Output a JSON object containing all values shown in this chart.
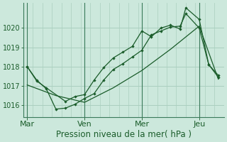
{
  "background_color": "#cce8dc",
  "grid_color": "#aacfbf",
  "line_color": "#1a5c2a",
  "vline_color": "#3a7a5a",
  "xlabel": "Pression niveau de la mer( hPa )",
  "ylim": [
    1015.4,
    1021.3
  ],
  "yticks": [
    1016,
    1017,
    1018,
    1019,
    1020
  ],
  "xtick_labels": [
    "Mar",
    "Ven",
    "Mer",
    "Jeu"
  ],
  "xtick_positions": [
    0,
    3,
    6,
    9
  ],
  "vline_positions": [
    0,
    3,
    6,
    9
  ],
  "xlim": [
    -0.2,
    10.3
  ],
  "line1_x": [
    0,
    0.5,
    1.0,
    1.5,
    2.0,
    2.5,
    3.0,
    3.5,
    4.0,
    4.5,
    5.0,
    5.5,
    6.0,
    6.5,
    7.0,
    7.5,
    8.0,
    8.3,
    9.0,
    9.5,
    10.0
  ],
  "line1_y": [
    1018.0,
    1017.3,
    1016.85,
    1015.8,
    1015.85,
    1016.05,
    1016.35,
    1016.6,
    1017.3,
    1017.85,
    1018.15,
    1018.5,
    1018.85,
    1019.65,
    1019.85,
    1020.05,
    1020.1,
    1020.75,
    1020.0,
    1018.1,
    1017.55
  ],
  "line2_x": [
    0,
    0.5,
    1.0,
    2.0,
    2.5,
    3.0,
    3.5,
    4.0,
    4.5,
    5.0,
    5.5,
    6.0,
    6.5,
    7.0,
    7.5,
    8.0,
    8.3,
    9.0,
    9.5,
    10.0
  ],
  "line2_y": [
    1018.0,
    1017.25,
    1016.9,
    1016.2,
    1016.45,
    1016.55,
    1017.3,
    1017.95,
    1018.45,
    1018.75,
    1019.05,
    1019.85,
    1019.55,
    1020.0,
    1020.15,
    1019.95,
    1021.05,
    1020.45,
    1018.1,
    1017.45
  ],
  "line3_x": [
    0,
    1.5,
    3.0,
    4.5,
    6.0,
    7.5,
    9.0,
    10.0
  ],
  "line3_y": [
    1017.05,
    1016.5,
    1016.15,
    1016.9,
    1017.8,
    1018.9,
    1020.1,
    1017.35
  ],
  "xlabel_fontsize": 8.5,
  "ytick_fontsize": 7,
  "xtick_fontsize": 8
}
